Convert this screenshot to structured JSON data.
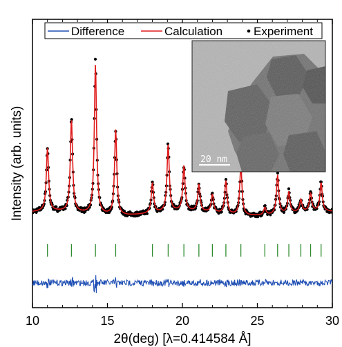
{
  "chart_data": {
    "type": "line",
    "xlabel": "2θ(deg) [λ=0.414584 Å]",
    "ylabel": "Intensity (arb. units)",
    "xlim": [
      10,
      30
    ],
    "x_ticks": [
      10,
      15,
      20,
      25,
      30
    ],
    "y_ticks_shown": false,
    "legend": {
      "placement": "top",
      "entries": [
        {
          "name": "Difference",
          "color": "#1f4fb4",
          "marker": "line"
        },
        {
          "name": "Calculation",
          "color": "#e01b1b",
          "marker": "line"
        },
        {
          "name": "Experiment",
          "color": "#000000",
          "marker": "dot"
        }
      ]
    },
    "baseline_level": 0.1,
    "peaks": [
      {
        "x": 11.0,
        "height": 0.42
      },
      {
        "x": 12.6,
        "height": 0.62
      },
      {
        "x": 14.2,
        "height": 1.0
      },
      {
        "x": 15.55,
        "height": 0.57
      },
      {
        "x": 18.0,
        "height": 0.2
      },
      {
        "x": 19.05,
        "height": 0.45
      },
      {
        "x": 20.1,
        "height": 0.3
      },
      {
        "x": 21.1,
        "height": 0.18
      },
      {
        "x": 22.0,
        "height": 0.12
      },
      {
        "x": 22.9,
        "height": 0.22
      },
      {
        "x": 23.9,
        "height": 0.33
      },
      {
        "x": 25.5,
        "height": 0.05
      },
      {
        "x": 26.35,
        "height": 0.26
      },
      {
        "x": 27.1,
        "height": 0.14
      },
      {
        "x": 27.9,
        "height": 0.08
      },
      {
        "x": 28.55,
        "height": 0.12
      },
      {
        "x": 29.25,
        "height": 0.19
      }
    ],
    "reflection_ticks": [
      11.0,
      12.6,
      14.2,
      15.55,
      18.0,
      19.05,
      20.1,
      21.1,
      22.0,
      22.9,
      23.9,
      25.5,
      26.35,
      27.1,
      27.9,
      28.55,
      29.25
    ],
    "reflection_tick_color": "#2e8b2e",
    "difference_color": "#1f4fb4",
    "calculation_color": "#e01b1b",
    "experiment_color": "#000000"
  },
  "inset": {
    "scale_bar_label": "20 nm"
  }
}
